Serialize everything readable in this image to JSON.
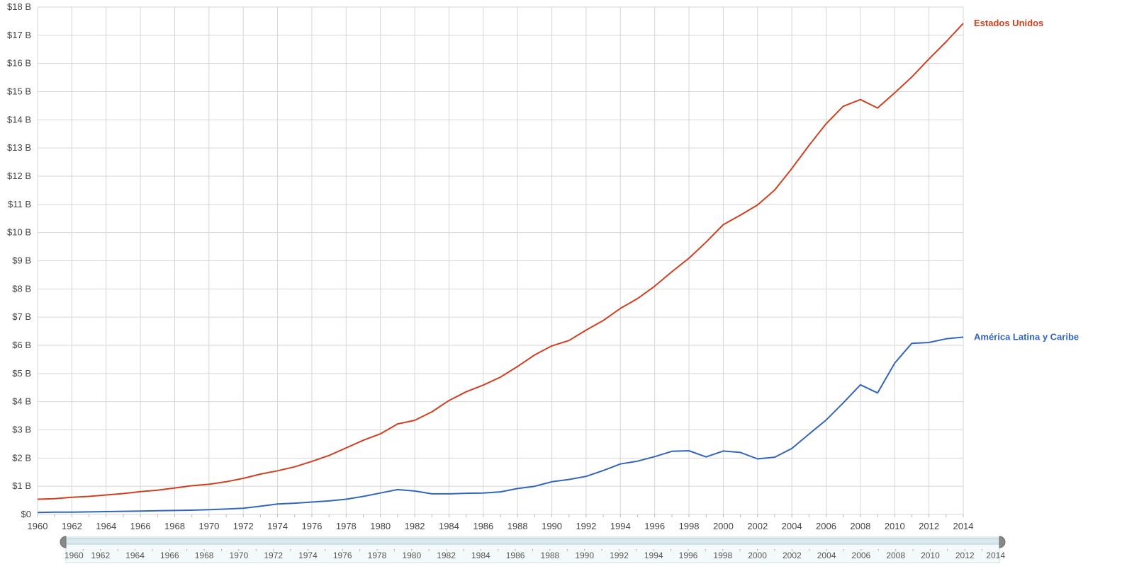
{
  "chart_data": {
    "type": "line",
    "title": "",
    "xlabel": "",
    "ylabel": "",
    "xlim": [
      1960,
      2014
    ],
    "ylim": [
      0,
      18
    ],
    "grid": true,
    "y_ticks": [
      "$0",
      "$1 B",
      "$2 B",
      "$3 B",
      "$4 B",
      "$5 B",
      "$6 B",
      "$7 B",
      "$8 B",
      "$9 B",
      "$10 B",
      "$11 B",
      "$12 B",
      "$13 B",
      "$14 B",
      "$15 B",
      "$16 B",
      "$17 B",
      "$18 B"
    ],
    "x_ticks": [
      "1960",
      "1962",
      "1964",
      "1966",
      "1968",
      "1970",
      "1972",
      "1974",
      "1976",
      "1978",
      "1980",
      "1982",
      "1984",
      "1986",
      "1988",
      "1990",
      "1992",
      "1994",
      "1996",
      "1998",
      "2000",
      "2002",
      "2004",
      "2006",
      "2008",
      "2010",
      "2012",
      "2014"
    ],
    "x": [
      1960,
      1961,
      1962,
      1963,
      1964,
      1965,
      1966,
      1967,
      1968,
      1969,
      1970,
      1971,
      1972,
      1973,
      1974,
      1975,
      1976,
      1977,
      1978,
      1979,
      1980,
      1981,
      1982,
      1983,
      1984,
      1985,
      1986,
      1987,
      1988,
      1989,
      1990,
      1991,
      1992,
      1993,
      1994,
      1995,
      1996,
      1997,
      1998,
      1999,
      2000,
      2001,
      2002,
      2003,
      2004,
      2005,
      2006,
      2007,
      2008,
      2009,
      2010,
      2011,
      2012,
      2013,
      2014
    ],
    "series": [
      {
        "name": "Estados Unidos",
        "color": "#d04020",
        "values": [
          0.54,
          0.56,
          0.61,
          0.64,
          0.69,
          0.74,
          0.81,
          0.86,
          0.94,
          1.02,
          1.07,
          1.16,
          1.28,
          1.43,
          1.55,
          1.69,
          1.88,
          2.09,
          2.36,
          2.63,
          2.86,
          3.21,
          3.34,
          3.64,
          4.04,
          4.35,
          4.59,
          4.87,
          5.25,
          5.66,
          5.98,
          6.17,
          6.54,
          6.88,
          7.31,
          7.66,
          8.1,
          8.61,
          9.09,
          9.66,
          10.28,
          10.62,
          10.98,
          11.51,
          12.27,
          13.09,
          13.86,
          14.48,
          14.72,
          14.42,
          14.96,
          15.52,
          16.16,
          16.77,
          17.42
        ]
      },
      {
        "name": "América Latina y Caribe",
        "color": "#3366bb",
        "values": [
          0.07,
          0.08,
          0.08,
          0.09,
          0.1,
          0.11,
          0.12,
          0.13,
          0.14,
          0.15,
          0.17,
          0.19,
          0.22,
          0.29,
          0.37,
          0.4,
          0.44,
          0.48,
          0.54,
          0.64,
          0.76,
          0.88,
          0.83,
          0.73,
          0.73,
          0.75,
          0.76,
          0.8,
          0.92,
          1.0,
          1.16,
          1.24,
          1.35,
          1.56,
          1.79,
          1.89,
          2.05,
          2.24,
          2.26,
          2.04,
          2.25,
          2.2,
          1.97,
          2.03,
          2.34,
          2.85,
          3.35,
          3.96,
          4.6,
          4.31,
          5.37,
          6.07,
          6.1,
          6.23,
          6.29
        ]
      }
    ]
  },
  "navigator": {
    "range_start": "1960",
    "range_end": "2014",
    "labels": [
      "1962",
      "1964",
      "1966",
      "1968",
      "1970",
      "1972",
      "1974",
      "1976",
      "1978",
      "1980",
      "1982",
      "1984",
      "1986",
      "1988",
      "1990",
      "1992",
      "1994",
      "1996",
      "1998",
      "2000",
      "2002",
      "2004",
      "2006",
      "2008",
      "2010",
      "2012"
    ]
  }
}
